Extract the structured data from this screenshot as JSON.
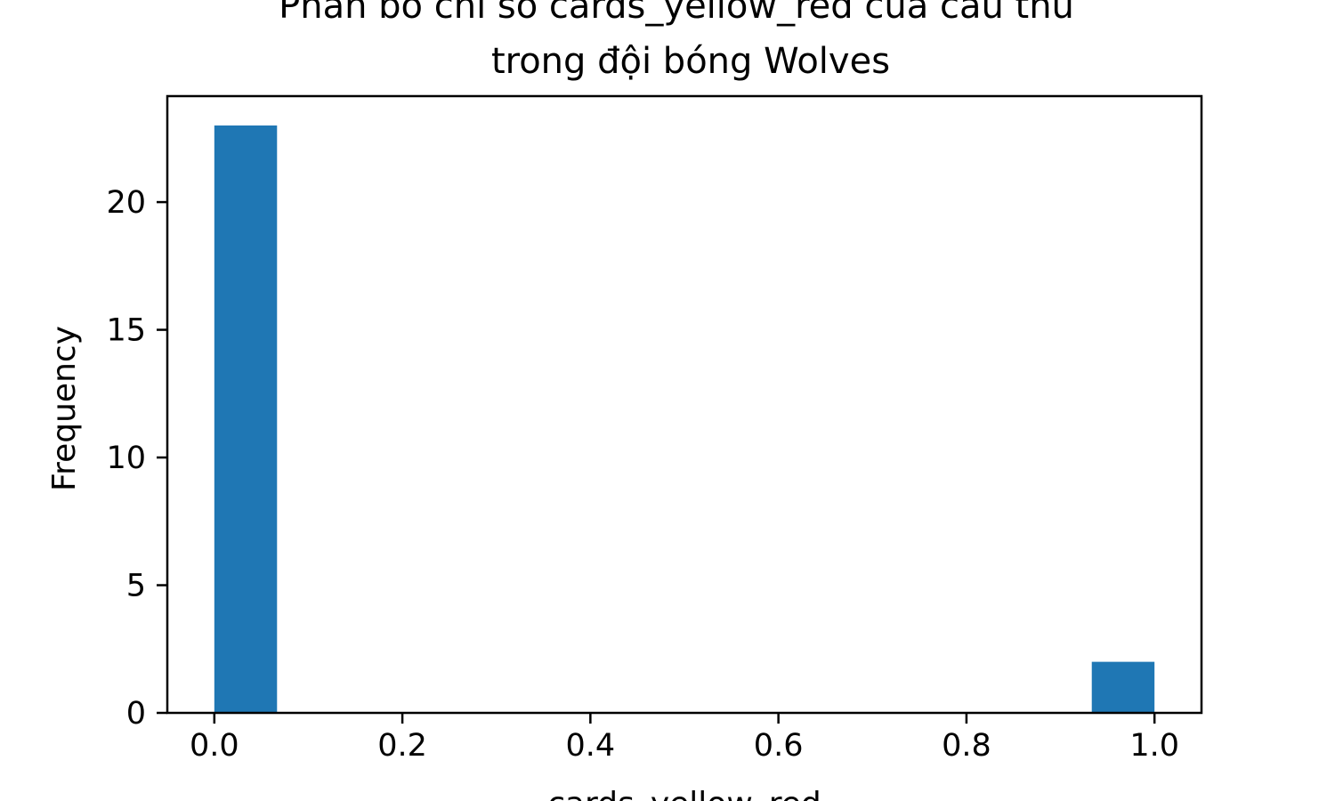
{
  "chart_data": {
    "type": "bar",
    "title_lines": [
      "Phân bố chỉ số cards_yellow_red của cầu thủ",
      "trong đội bóng Wolves"
    ],
    "xlabel": "cards_yellow_red",
    "ylabel": "Frequency",
    "xlim": [
      -0.05,
      1.05
    ],
    "ylim": [
      0,
      24.15
    ],
    "x_ticks": [
      0.0,
      0.2,
      0.4,
      0.6,
      0.8,
      1.0
    ],
    "x_tick_labels": [
      "0.0",
      "0.2",
      "0.4",
      "0.6",
      "0.8",
      "1.0"
    ],
    "y_ticks": [
      0,
      5,
      10,
      15,
      20
    ],
    "y_tick_labels": [
      "0",
      "5",
      "10",
      "15",
      "20"
    ],
    "bar_color": "#1f77b4",
    "bins": [
      {
        "x0": 0.0,
        "x1": 0.0667,
        "count": 23
      },
      {
        "x0": 0.9333,
        "x1": 1.0,
        "count": 2
      }
    ],
    "grid": false,
    "legend": "none"
  }
}
